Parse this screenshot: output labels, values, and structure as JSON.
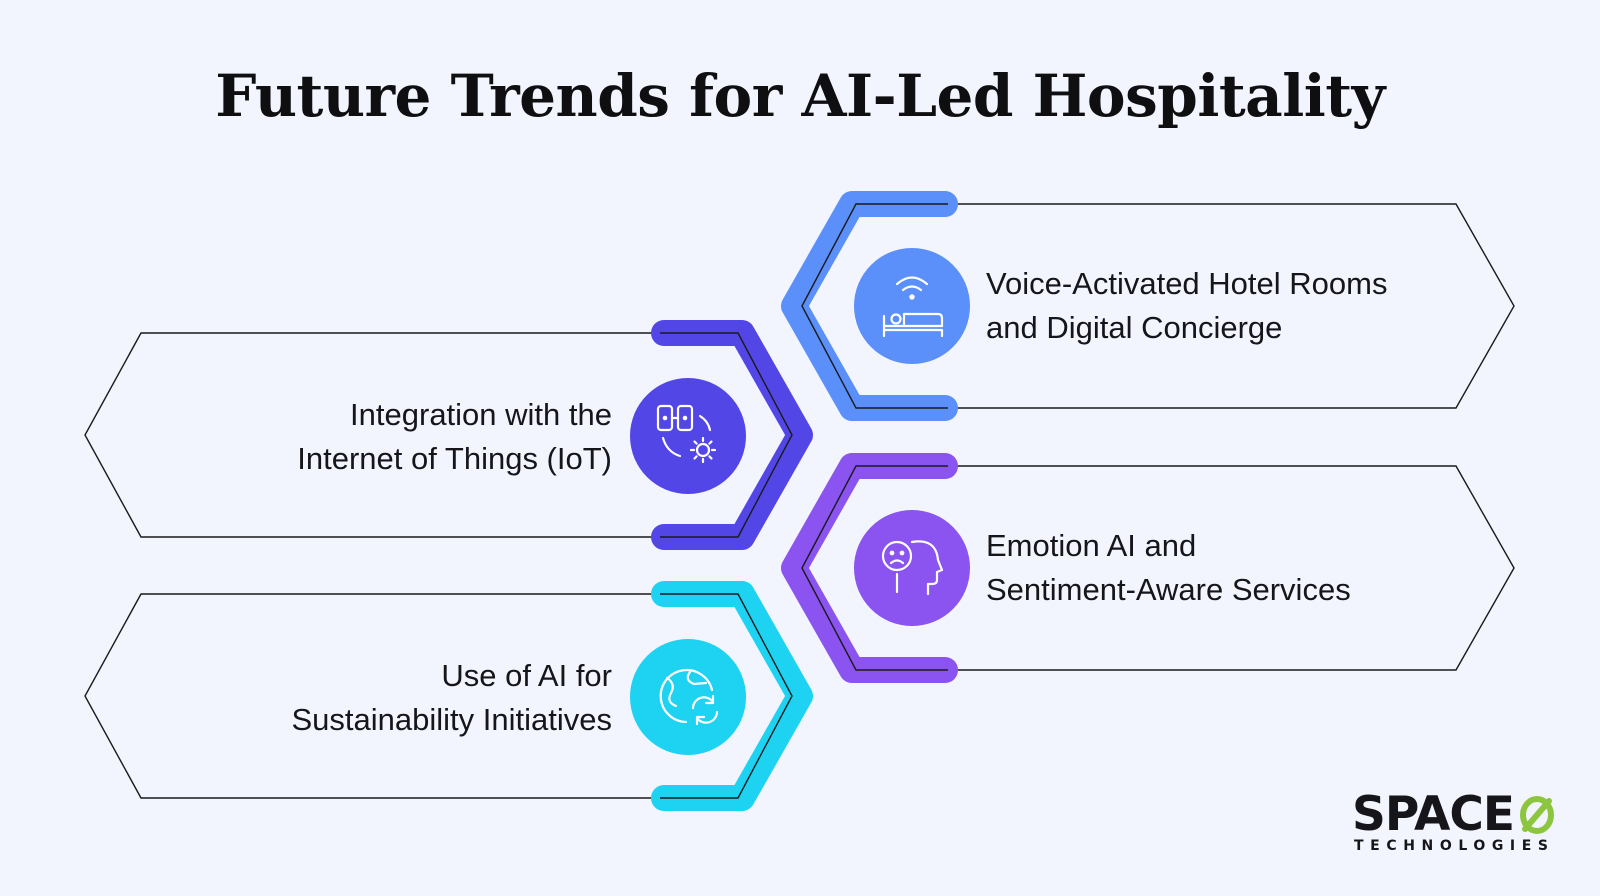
{
  "title": "Future Trends for AI-Led Hospitality",
  "items": [
    {
      "line1": "Voice-Activated Hotel Rooms",
      "line2": "and Digital Concierge",
      "icon": "smart-bed-icon",
      "color": "#5b8ff9"
    },
    {
      "line1": "Integration with the",
      "line2": "Internet of Things (IoT)",
      "icon": "iot-devices-gear-icon",
      "color": "#5346e6"
    },
    {
      "line1": "Emotion AI and",
      "line2": "Sentiment-Aware Services",
      "icon": "emotion-head-icon",
      "color": "#8b53ef"
    },
    {
      "line1": "Use of AI for",
      "line2": "Sustainability Initiatives",
      "icon": "globe-recycle-icon",
      "color": "#1ed2f2"
    }
  ],
  "logo": {
    "name": "SPACE",
    "sub": "TECHNOLOGIES",
    "mark_color": "#8cc63f"
  }
}
